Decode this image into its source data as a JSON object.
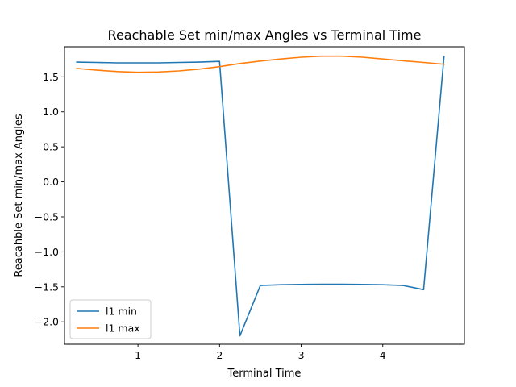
{
  "chart_data": {
    "type": "line",
    "title": "Reachable Set min/max Angles vs Terminal Time",
    "xlabel": "Terminal Time",
    "ylabel": "Reacahble Set min/max Angles",
    "xlim": [
      0.1,
      5.0
    ],
    "ylim": [
      -2.32,
      1.93
    ],
    "xticks": [
      1,
      2,
      3,
      4
    ],
    "xtick_labels": [
      "1",
      "2",
      "3",
      "4"
    ],
    "yticks": [
      -2.0,
      -1.5,
      -1.0,
      -0.5,
      0.0,
      0.5,
      1.0,
      1.5
    ],
    "ytick_labels": [
      "−2.0",
      "−1.5",
      "−1.0",
      "−0.5",
      "0.0",
      "0.5",
      "1.0",
      "1.5"
    ],
    "grid": false,
    "legend_position": "lower-left",
    "series": [
      {
        "name": "l1 min",
        "color": "#1f77b4",
        "x": [
          0.25,
          0.5,
          0.75,
          1.0,
          1.25,
          1.5,
          1.75,
          2.0,
          2.25,
          2.5,
          2.75,
          3.0,
          3.25,
          3.5,
          3.75,
          4.0,
          4.25,
          4.5,
          4.75
        ],
        "y": [
          1.71,
          1.705,
          1.7,
          1.7,
          1.7,
          1.705,
          1.71,
          1.72,
          -2.2,
          -1.48,
          -1.47,
          -1.465,
          -1.462,
          -1.462,
          -1.465,
          -1.47,
          -1.48,
          -1.54,
          1.79
        ]
      },
      {
        "name": "l1 max",
        "color": "#ff7f0e",
        "x": [
          0.25,
          0.5,
          0.75,
          1.0,
          1.25,
          1.5,
          1.75,
          2.0,
          2.25,
          2.5,
          2.75,
          3.0,
          3.25,
          3.5,
          3.75,
          4.0,
          4.25,
          4.5,
          4.75
        ],
        "y": [
          1.62,
          1.595,
          1.575,
          1.565,
          1.57,
          1.585,
          1.61,
          1.645,
          1.69,
          1.725,
          1.755,
          1.78,
          1.795,
          1.795,
          1.78,
          1.755,
          1.73,
          1.705,
          1.68
        ]
      }
    ]
  }
}
